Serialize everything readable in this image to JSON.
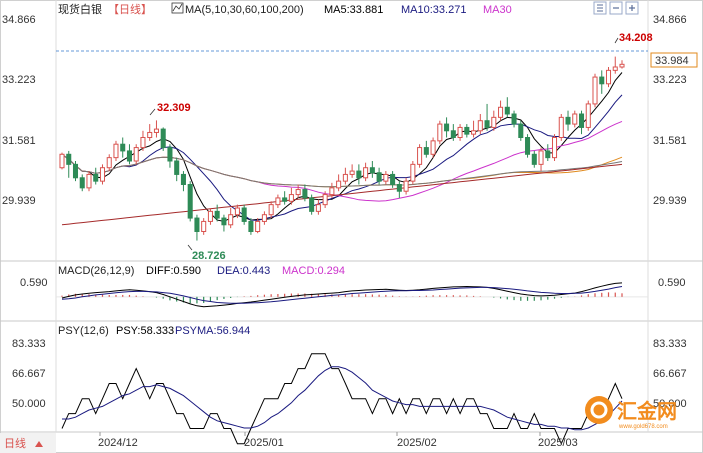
{
  "header": {
    "title": "现货白银",
    "period_tag": "【日线】",
    "ma_label": "MA(5,10,30,60,100,200)",
    "ma5_label": "MA5:33.881",
    "ma10_label": "MA10:33.271",
    "ma30_label": "MA30"
  },
  "macd_header": {
    "label": "MACD(26,12,9)",
    "diff": "DIFF:0.590",
    "dea": "DEA:0.443",
    "macd": "MACD:0.294"
  },
  "psy_header": {
    "label": "PSY(12,6)",
    "psy": "PSY:58.333",
    "psyma": "PSYMA:56.944"
  },
  "footer": {
    "period_button": "日线",
    "date_labels": [
      "2024/12",
      "2025/01",
      "2025/02",
      "2025/03"
    ]
  },
  "price_axis": {
    "ticks": [
      "34.866",
      "33.223",
      "31.581",
      "29.939"
    ],
    "current_price": "33.984",
    "high_label": "34.208",
    "peak_label": "32.309",
    "low_label": "28.726"
  },
  "macd_axis": {
    "ticks": [
      "0.590"
    ]
  },
  "psy_axis": {
    "ticks": [
      "83.333",
      "66.667",
      "50.000"
    ]
  },
  "watermark": {
    "brand": "汇金网",
    "url": "www.gold678.com"
  },
  "colors": {
    "up": "#d9534f",
    "down": "#2e8b57",
    "ma5": "#000000",
    "ma10": "#1a1a80",
    "ma30": "#cc33cc",
    "ma60": "#e08a1e",
    "ma100": "#777777",
    "ma200": "#a52a2a",
    "diff": "#000000",
    "dea": "#1a1a80",
    "psy": "#000000",
    "psyma": "#1a1a80",
    "price_line": "#3377cc",
    "high_label": "#cc0000",
    "low_label": "#2e8b57",
    "current_box": "#e08a1e"
  },
  "chart_data": {
    "type": "candlestick",
    "price_range": [
      28.3,
      35.3
    ],
    "candles": [
      [
        30.9,
        31.3,
        31.35,
        30.85
      ],
      [
        31.3,
        31.0,
        31.4,
        30.6
      ],
      [
        31.0,
        30.6,
        31.1,
        30.5
      ],
      [
        30.6,
        30.3,
        30.7,
        30.2
      ],
      [
        30.3,
        30.7,
        30.8,
        30.2
      ],
      [
        30.7,
        30.5,
        30.9,
        30.4
      ],
      [
        30.5,
        30.9,
        31.0,
        30.4
      ],
      [
        30.9,
        31.2,
        31.3,
        30.8
      ],
      [
        31.2,
        31.6,
        31.7,
        31.1
      ],
      [
        31.6,
        31.4,
        31.8,
        31.2
      ],
      [
        31.4,
        31.1,
        31.6,
        31.0
      ],
      [
        31.1,
        31.5,
        31.6,
        31.0
      ],
      [
        31.5,
        31.8,
        32.0,
        31.4
      ],
      [
        31.8,
        31.95,
        32.2,
        31.7
      ],
      [
        31.95,
        32.05,
        32.31,
        31.8
      ],
      [
        32.05,
        31.5,
        32.1,
        31.4
      ],
      [
        31.5,
        31.1,
        31.6,
        30.9
      ],
      [
        31.1,
        30.7,
        31.2,
        30.5
      ],
      [
        30.7,
        30.4,
        30.8,
        30.2
      ],
      [
        30.4,
        29.4,
        30.5,
        29.3
      ],
      [
        29.4,
        29.0,
        29.5,
        28.73
      ],
      [
        29.0,
        29.3,
        29.4,
        28.9
      ],
      [
        29.3,
        29.6,
        29.7,
        29.2
      ],
      [
        29.6,
        29.4,
        29.8,
        29.3
      ],
      [
        29.4,
        29.2,
        29.5,
        29.0
      ],
      [
        29.2,
        29.5,
        29.7,
        29.1
      ],
      [
        29.5,
        29.7,
        29.8,
        29.4
      ],
      [
        29.7,
        29.3,
        29.8,
        29.2
      ],
      [
        29.3,
        29.0,
        29.4,
        28.9
      ],
      [
        29.0,
        29.3,
        29.4,
        28.95
      ],
      [
        29.3,
        29.5,
        29.6,
        29.2
      ],
      [
        29.5,
        29.8,
        29.9,
        29.4
      ],
      [
        29.8,
        30.0,
        30.1,
        29.7
      ],
      [
        30.0,
        29.9,
        30.2,
        29.8
      ],
      [
        29.9,
        30.1,
        30.3,
        29.8
      ],
      [
        30.1,
        30.25,
        30.4,
        30.0
      ],
      [
        30.25,
        30.0,
        30.4,
        29.9
      ],
      [
        30.0,
        29.6,
        30.1,
        29.5
      ],
      [
        29.6,
        29.8,
        29.95,
        29.5
      ],
      [
        29.8,
        30.1,
        30.2,
        29.7
      ],
      [
        30.1,
        30.3,
        30.45,
        30.0
      ],
      [
        30.3,
        30.5,
        30.7,
        30.2
      ],
      [
        30.5,
        30.7,
        30.9,
        30.4
      ],
      [
        30.7,
        30.8,
        31.0,
        30.6
      ],
      [
        30.8,
        30.6,
        31.0,
        30.4
      ],
      [
        30.6,
        30.9,
        31.05,
        30.5
      ],
      [
        30.9,
        30.75,
        31.1,
        30.6
      ],
      [
        30.75,
        30.5,
        30.9,
        30.4
      ],
      [
        30.5,
        30.7,
        30.8,
        30.4
      ],
      [
        30.7,
        30.4,
        30.8,
        30.3
      ],
      [
        30.4,
        30.2,
        30.5,
        30.0
      ],
      [
        30.2,
        30.5,
        30.6,
        30.1
      ],
      [
        30.5,
        31.0,
        31.1,
        30.4
      ],
      [
        31.0,
        31.5,
        31.6,
        30.9
      ],
      [
        31.5,
        31.3,
        31.7,
        31.2
      ],
      [
        31.3,
        31.7,
        31.8,
        31.2
      ],
      [
        31.7,
        32.2,
        32.3,
        31.6
      ],
      [
        32.2,
        32.0,
        32.4,
        31.8
      ],
      [
        32.0,
        31.8,
        32.2,
        31.7
      ],
      [
        31.8,
        32.1,
        32.2,
        31.7
      ],
      [
        32.1,
        31.9,
        32.2,
        31.8
      ],
      [
        31.9,
        32.0,
        32.3,
        31.8
      ],
      [
        32.0,
        32.3,
        32.5,
        31.9
      ],
      [
        32.3,
        32.1,
        32.8,
        32.0
      ],
      [
        32.1,
        32.4,
        32.6,
        32.0
      ],
      [
        32.4,
        32.7,
        32.9,
        32.3
      ],
      [
        32.7,
        32.5,
        33.0,
        32.4
      ],
      [
        32.5,
        32.2,
        32.6,
        32.1
      ],
      [
        32.2,
        31.8,
        32.3,
        31.7
      ],
      [
        31.8,
        31.3,
        31.9,
        31.2
      ],
      [
        31.3,
        31.0,
        31.4,
        30.9
      ],
      [
        31.0,
        31.4,
        31.5,
        30.8
      ],
      [
        31.4,
        31.2,
        31.6,
        31.1
      ],
      [
        31.2,
        31.8,
        31.9,
        31.1
      ],
      [
        31.8,
        32.4,
        32.5,
        31.7
      ],
      [
        32.4,
        32.2,
        32.6,
        32.0
      ],
      [
        32.2,
        32.5,
        32.6,
        32.1
      ],
      [
        32.5,
        32.1,
        32.6,
        31.9
      ],
      [
        32.1,
        32.8,
        32.9,
        32.0
      ],
      [
        32.8,
        33.6,
        33.7,
        32.7
      ],
      [
        33.6,
        33.4,
        33.8,
        33.1
      ],
      [
        33.4,
        33.8,
        33.9,
        33.3
      ],
      [
        33.8,
        33.9,
        34.21,
        33.7
      ],
      [
        33.9,
        33.98,
        34.1,
        33.85
      ]
    ],
    "macd": {
      "zero_value": 0,
      "range": [
        -0.9,
        0.8
      ],
      "diff": [
        -0.05,
        0.02,
        0.08,
        0.12,
        0.15,
        0.18,
        0.2,
        0.22,
        0.25,
        0.28,
        0.3,
        0.28,
        0.25,
        0.22,
        0.18,
        0.1,
        0.0,
        -0.1,
        -0.2,
        -0.3,
        -0.38,
        -0.42,
        -0.4,
        -0.38,
        -0.35,
        -0.32,
        -0.28,
        -0.25,
        -0.22,
        -0.18,
        -0.14,
        -0.1,
        -0.06,
        -0.02,
        0.02,
        0.05,
        0.08,
        0.1,
        0.12,
        0.14,
        0.16,
        0.18,
        0.22,
        0.25,
        0.27,
        0.29,
        0.3,
        0.31,
        0.32,
        0.3,
        0.28,
        0.27,
        0.28,
        0.3,
        0.33,
        0.36,
        0.38,
        0.4,
        0.42,
        0.43,
        0.44,
        0.43,
        0.42,
        0.4,
        0.36,
        0.3,
        0.24,
        0.18,
        0.12,
        0.08,
        0.05,
        0.04,
        0.05,
        0.07,
        0.1,
        0.13,
        0.16,
        0.22,
        0.3,
        0.38,
        0.45,
        0.52,
        0.57,
        0.59
      ],
      "dea": [
        -0.1,
        -0.08,
        -0.05,
        0.0,
        0.04,
        0.08,
        0.11,
        0.14,
        0.17,
        0.2,
        0.22,
        0.23,
        0.23,
        0.22,
        0.21,
        0.18,
        0.15,
        0.1,
        0.04,
        -0.03,
        -0.1,
        -0.16,
        -0.2,
        -0.24,
        -0.26,
        -0.27,
        -0.27,
        -0.27,
        -0.26,
        -0.25,
        -0.23,
        -0.21,
        -0.18,
        -0.15,
        -0.12,
        -0.09,
        -0.06,
        -0.03,
        0.0,
        0.03,
        0.06,
        0.08,
        0.11,
        0.14,
        0.16,
        0.18,
        0.2,
        0.22,
        0.24,
        0.25,
        0.26,
        0.26,
        0.27,
        0.27,
        0.28,
        0.29,
        0.31,
        0.33,
        0.35,
        0.37,
        0.38,
        0.39,
        0.4,
        0.4,
        0.39,
        0.37,
        0.35,
        0.32,
        0.29,
        0.25,
        0.22,
        0.19,
        0.17,
        0.15,
        0.14,
        0.14,
        0.15,
        0.16,
        0.19,
        0.23,
        0.28,
        0.33,
        0.39,
        0.44
      ],
      "hist": [
        0.1,
        0.2,
        0.26,
        0.24,
        0.22,
        0.2,
        0.18,
        0.16,
        0.16,
        0.16,
        0.16,
        0.1,
        0.04,
        0.0,
        -0.06,
        -0.16,
        -0.3,
        -0.4,
        -0.48,
        -0.54,
        -0.56,
        -0.52,
        -0.4,
        -0.28,
        -0.18,
        -0.1,
        -0.02,
        0.04,
        0.08,
        0.14,
        0.18,
        0.22,
        0.24,
        0.26,
        0.28,
        0.28,
        0.28,
        0.26,
        0.24,
        0.22,
        0.2,
        0.2,
        0.22,
        0.22,
        0.22,
        0.22,
        0.2,
        0.18,
        0.16,
        0.1,
        0.04,
        0.02,
        0.02,
        0.06,
        0.1,
        0.14,
        0.14,
        0.14,
        0.14,
        0.12,
        0.12,
        0.08,
        0.04,
        0.0,
        -0.06,
        -0.14,
        -0.22,
        -0.28,
        -0.34,
        -0.34,
        -0.34,
        -0.3,
        -0.24,
        -0.16,
        -0.08,
        -0.02,
        0.02,
        0.12,
        0.22,
        0.3,
        0.34,
        0.38,
        0.36,
        0.3
      ]
    },
    "psy": {
      "range": [
        42,
        92
      ],
      "psy": [
        41.7,
        50,
        50,
        58.3,
        58.3,
        50,
        58.3,
        66.7,
        66.7,
        58.3,
        66.7,
        75,
        66.7,
        58.3,
        66.7,
        66.7,
        58.3,
        50,
        50,
        41.7,
        41.7,
        41.7,
        50,
        50,
        41.7,
        41.7,
        33.3,
        33.3,
        41.7,
        50,
        58.3,
        58.3,
        58.3,
        66.7,
        66.7,
        75,
        75,
        83.3,
        83.3,
        83.3,
        75,
        75,
        66.7,
        58.3,
        58.3,
        58.3,
        50,
        58.3,
        58.3,
        50,
        58.3,
        50,
        58.3,
        58.3,
        50,
        58.3,
        58.3,
        50,
        58.3,
        50,
        58.3,
        58.3,
        50,
        50,
        41.7,
        41.7,
        41.7,
        50,
        41.7,
        41.7,
        50,
        41.7,
        41.7,
        41.7,
        33.3,
        41.7,
        41.7,
        41.7,
        50,
        58.3,
        50,
        58.3,
        66.7,
        58.3
      ],
      "psyma": [
        47,
        47,
        48,
        50,
        52,
        53,
        54,
        56,
        58,
        60,
        61,
        63,
        65,
        65,
        66,
        65,
        64,
        62,
        60,
        57,
        54,
        51,
        48,
        46,
        45,
        44,
        43,
        42,
        42,
        43,
        45,
        48,
        50,
        53,
        56,
        60,
        63,
        67,
        71,
        74,
        76,
        76,
        75,
        73,
        70,
        67,
        63,
        61,
        59,
        57,
        56,
        55,
        55,
        54,
        54,
        54,
        54,
        54,
        54,
        54,
        54,
        54,
        54,
        53,
        52,
        50,
        48,
        47,
        46,
        45,
        44,
        44,
        43,
        43,
        42,
        42,
        41,
        41,
        42,
        44,
        46,
        49,
        53,
        57
      ]
    }
  }
}
